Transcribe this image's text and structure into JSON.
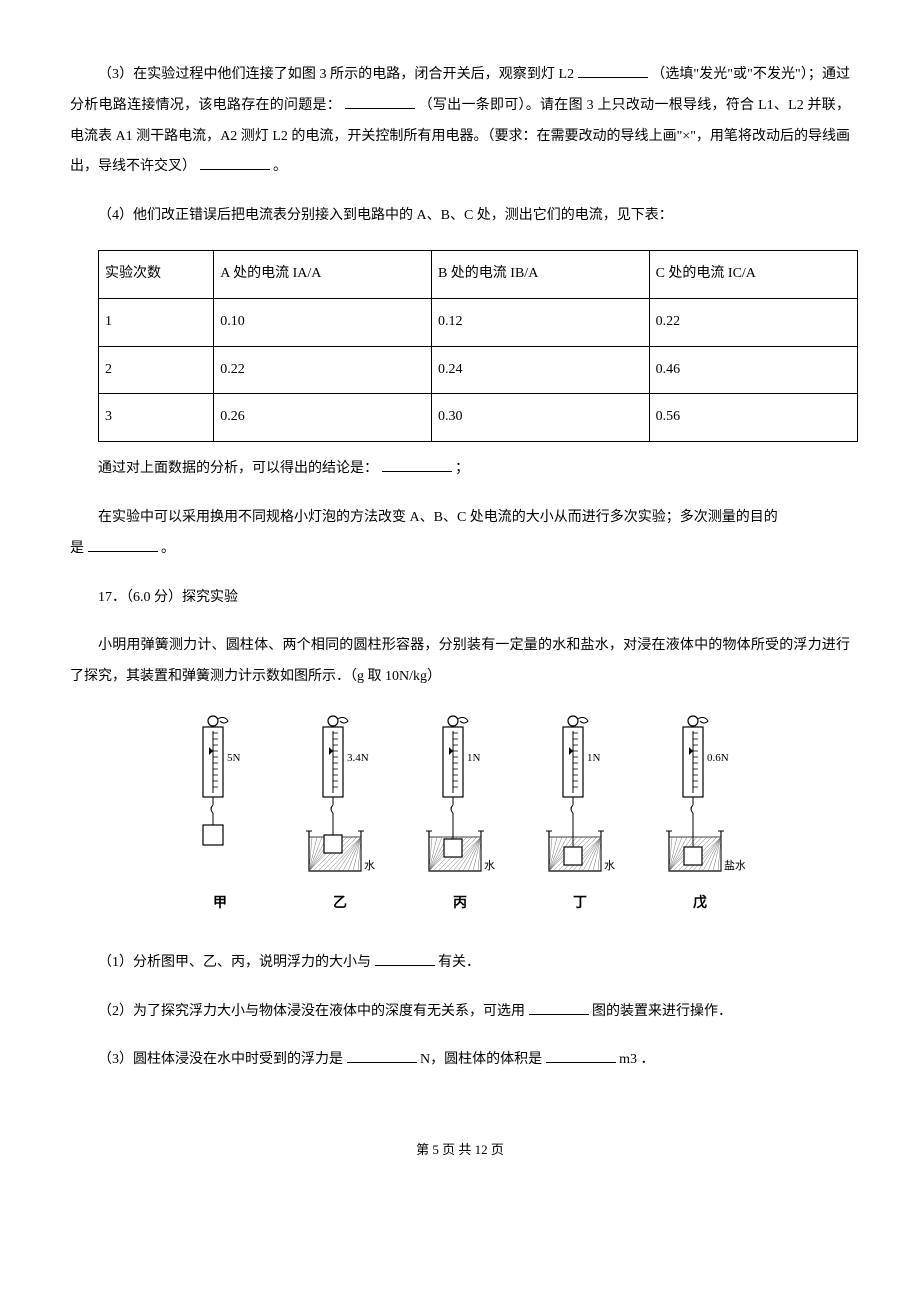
{
  "p3": {
    "pre": "（3）在实验过程中他们连接了如图 3 所示的电路，闭合开关后，观察到灯 L2",
    "mid1": "（选填\"发光\"或\"不发光\"）；通过分析电路连接情况，该电路存在的问题是：",
    "mid2": "（写出一条即可）。请在图 3 上只改动一根导线，符合 L1、L2 并联，电流表 A1 测干路电流，A2 测灯 L2 的电流，开关控制所有用电器。（要求：在需要改动的导线上画\"×\"，用笔将改动后的导线画出，导线不许交叉）",
    "end": "。"
  },
  "p4_intro": "（4）他们改正错误后把电流表分别接入到电路中的 A、B、C 处，测出它们的电流，见下表：",
  "table": {
    "headers": [
      "实验次数",
      "A 处的电流 IA/A",
      "B 处的电流 IB/A",
      "C 处的电流 IC/A"
    ],
    "rows": [
      [
        "1",
        "0.10",
        "0.12",
        "0.22"
      ],
      [
        "2",
        "0.22",
        "0.24",
        "0.46"
      ],
      [
        "3",
        "0.26",
        "0.30",
        "0.56"
      ]
    ],
    "col_widths": [
      "110px",
      "220px",
      "220px",
      "210px"
    ]
  },
  "conclusion": {
    "pre": "通过对上面数据的分析，可以得出的结论是：",
    "end": "；"
  },
  "multi": {
    "line1": "在实验中可以采用换用不同规格小灯泡的方法改变 A、B、C 处电流的大小从而进行多次实验；多次测量的目的",
    "line2_pre": "是",
    "line2_end": "。"
  },
  "q17_header": "17．（6.0 分）探究实验",
  "q17_intro": "小明用弹簧测力计、圆柱体、两个相同的圆柱形容器，分别装有一定量的水和盐水，对浸在液体中的物体所受的浮力进行了探究，其装置和弹簧测力计示数如图所示．（g 取 10N/kg）",
  "figures": [
    {
      "label": "甲",
      "reading": "5N",
      "liquid": "",
      "immersion": "none"
    },
    {
      "label": "乙",
      "reading": "3.4N",
      "liquid": "水",
      "immersion": "partial"
    },
    {
      "label": "丙",
      "reading": "1N",
      "liquid": "水",
      "immersion": "full_top"
    },
    {
      "label": "丁",
      "reading": "1N",
      "liquid": "水",
      "immersion": "full_deep"
    },
    {
      "label": "戊",
      "reading": "0.6N",
      "liquid": "盐水",
      "immersion": "full_deep"
    }
  ],
  "q17_1": {
    "pre": "（1）分析图甲、乙、丙，说明浮力的大小与",
    "end": "有关．"
  },
  "q17_2": {
    "pre": "（2）为了探究浮力大小与物体浸没在液体中的深度有无关系，可选用",
    "end": "图的装置来进行操作．"
  },
  "q17_3": {
    "pre": "（3）圆柱体浸没在水中时受到的浮力是",
    "mid": " N，圆柱体的体积是",
    "end": " m3 ．"
  },
  "footer": {
    "pre": "第 ",
    "page": "5",
    "mid": " 页 共 ",
    "total": "12",
    "end": " 页"
  },
  "svg": {
    "stroke": "#000",
    "hatch": "#555"
  }
}
